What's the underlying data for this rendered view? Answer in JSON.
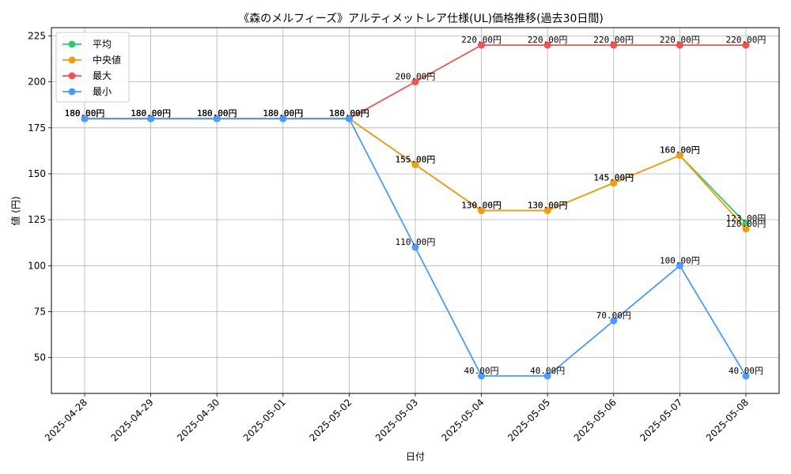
{
  "chart_data": {
    "type": "line",
    "title": "《森のメルフィーズ》アルティメットレア仕様(UL)価格推移(過去30日間)",
    "xlabel": "日付",
    "ylabel": "値 (円)",
    "categories": [
      "2025-04-28",
      "2025-04-29",
      "2025-04-30",
      "2025-05-01",
      "2025-05-02",
      "2025-05-03",
      "2025-05-04",
      "2025-05-05",
      "2025-05-06",
      "2025-05-07",
      "2025-05-08"
    ],
    "ylim": [
      30.5,
      229.5
    ],
    "yticks": [
      50,
      75,
      100,
      125,
      150,
      175,
      200,
      225
    ],
    "grid": true,
    "legend_position": "top-left",
    "value_suffix": "円",
    "series": [
      {
        "name": "平均",
        "color": "#2ecc71",
        "values": [
          180,
          180,
          180,
          180,
          180,
          155,
          130,
          130,
          145,
          160,
          123
        ]
      },
      {
        "name": "中央値",
        "color": "#f39c12",
        "values": [
          180,
          180,
          180,
          180,
          180,
          155,
          130,
          130,
          145,
          160,
          120
        ]
      },
      {
        "name": "最大",
        "color": "#ef5350",
        "values": [
          180,
          180,
          180,
          180,
          180,
          200,
          220,
          220,
          220,
          220,
          220
        ]
      },
      {
        "name": "最小",
        "color": "#4a9bff",
        "values": [
          180,
          180,
          180,
          180,
          180,
          110,
          40,
          40,
          70,
          100,
          40
        ]
      }
    ]
  }
}
